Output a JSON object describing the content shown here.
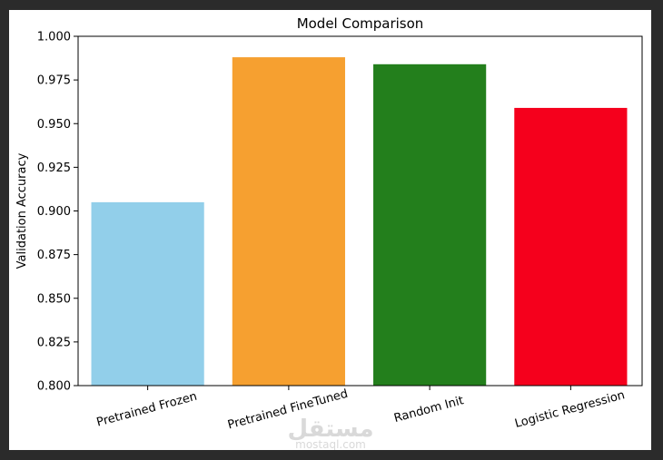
{
  "chart_data": {
    "type": "bar",
    "title": "Model Comparison",
    "xlabel": "",
    "ylabel": "Validation Accuracy",
    "categories": [
      "Pretrained Frozen",
      "Pretrained FineTuned",
      "Random Init",
      "Logistic Regression"
    ],
    "values": [
      0.905,
      0.988,
      0.984,
      0.959
    ],
    "colors": [
      "#92cfea",
      "#f6a030",
      "#237f1c",
      "#f5001c"
    ],
    "ylim": [
      0.8,
      1.0
    ],
    "yticks": [
      "0.800",
      "0.825",
      "0.850",
      "0.875",
      "0.900",
      "0.925",
      "0.950",
      "0.975",
      "1.000"
    ],
    "xtick_rotation": -15,
    "grid": false,
    "legend": "none"
  },
  "watermark": {
    "arabic": "مستقل",
    "latin": "mostaql.com"
  }
}
